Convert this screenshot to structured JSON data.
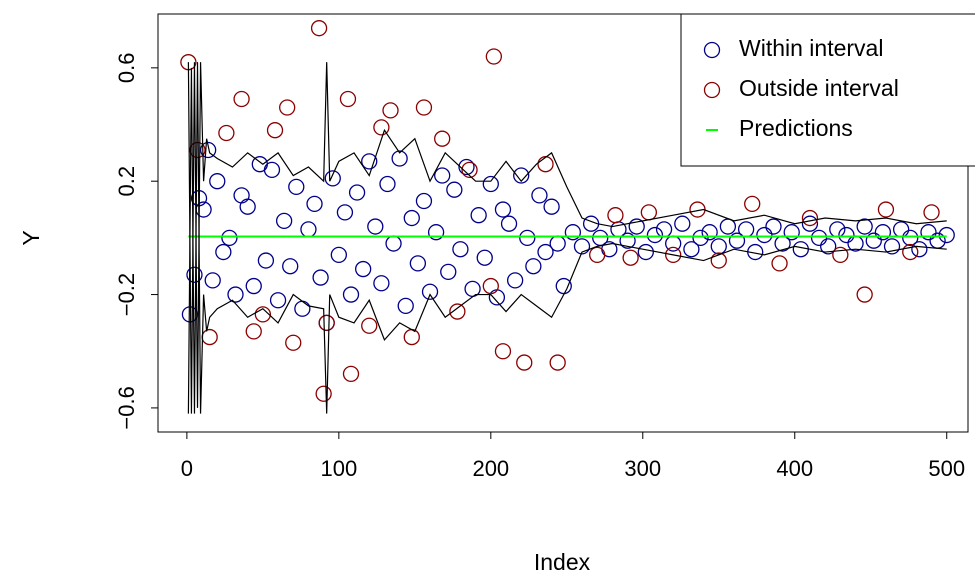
{
  "chart_data": {
    "type": "scatter",
    "xlabel": "Index",
    "ylabel": "Y",
    "xlim": [
      -19,
      514
    ],
    "ylim": [
      -0.685,
      0.79
    ],
    "xticks": [
      0,
      100,
      200,
      300,
      400,
      500
    ],
    "yticks": [
      {
        "value": -0.6,
        "label": "−0.6"
      },
      {
        "value": -0.2,
        "label": "−0.2"
      },
      0.2,
      0.6
    ],
    "legend": "topright",
    "series": [
      {
        "name": "Within interval",
        "type": "scatter",
        "color": "#00008b",
        "x": [
          2,
          5,
          8,
          11,
          14,
          17,
          20,
          24,
          28,
          32,
          36,
          40,
          44,
          48,
          52,
          56,
          60,
          64,
          68,
          72,
          76,
          80,
          84,
          88,
          92,
          96,
          100,
          104,
          108,
          112,
          116,
          120,
          124,
          128,
          132,
          136,
          140,
          144,
          148,
          152,
          156,
          160,
          164,
          168,
          172,
          176,
          180,
          184,
          188,
          192,
          196,
          200,
          204,
          208,
          212,
          216,
          220,
          224,
          228,
          232,
          236,
          240,
          244,
          248,
          254,
          260,
          266,
          272,
          278,
          284,
          290,
          296,
          302,
          308,
          314,
          320,
          326,
          332,
          338,
          344,
          350,
          356,
          362,
          368,
          374,
          380,
          386,
          392,
          398,
          404,
          410,
          416,
          422,
          428,
          434,
          440,
          446,
          452,
          458,
          464,
          470,
          476,
          482,
          488,
          494,
          500
        ],
        "values": [
          -0.27,
          -0.13,
          0.14,
          0.1,
          0.31,
          -0.15,
          0.2,
          -0.05,
          0.0,
          -0.2,
          0.15,
          0.11,
          -0.17,
          0.26,
          -0.08,
          0.24,
          -0.22,
          0.06,
          -0.1,
          0.18,
          -0.25,
          0.03,
          0.12,
          -0.14,
          -0.3,
          0.21,
          -0.06,
          0.09,
          -0.2,
          0.16,
          -0.11,
          0.27,
          0.04,
          -0.16,
          0.19,
          -0.02,
          0.28,
          -0.24,
          0.07,
          -0.09,
          0.13,
          -0.19,
          0.02,
          0.22,
          -0.12,
          0.17,
          -0.04,
          0.25,
          -0.18,
          0.08,
          -0.07,
          0.19,
          -0.21,
          0.1,
          0.05,
          -0.15,
          0.22,
          0.0,
          -0.1,
          0.15,
          -0.05,
          0.11,
          -0.02,
          -0.17,
          0.02,
          -0.03,
          0.05,
          0.0,
          -0.04,
          0.03,
          -0.01,
          0.04,
          -0.05,
          0.01,
          0.03,
          -0.02,
          0.05,
          -0.04,
          0.0,
          0.02,
          -0.03,
          0.04,
          -0.01,
          0.03,
          -0.05,
          0.01,
          0.04,
          -0.02,
          0.02,
          -0.04,
          0.05,
          0.0,
          -0.03,
          0.03,
          0.01,
          -0.02,
          0.04,
          -0.01,
          0.02,
          -0.03,
          0.03,
          0.0,
          -0.04,
          0.02,
          -0.01,
          0.01
        ]
      },
      {
        "name": "Outside interval",
        "type": "scatter",
        "color": "#8b0000",
        "x": [
          1,
          7,
          15,
          26,
          36,
          44,
          50,
          58,
          66,
          70,
          87,
          90,
          92,
          106,
          108,
          120,
          128,
          134,
          148,
          156,
          168,
          178,
          186,
          200,
          202,
          208,
          222,
          236,
          244,
          270,
          282,
          292,
          304,
          320,
          336,
          350,
          372,
          390,
          410,
          430,
          446,
          460,
          476,
          490
        ],
        "values": [
          0.62,
          0.31,
          -0.35,
          0.37,
          0.49,
          -0.33,
          -0.27,
          0.38,
          0.46,
          -0.37,
          0.74,
          -0.55,
          -0.3,
          0.49,
          -0.48,
          -0.31,
          0.39,
          0.45,
          -0.35,
          0.46,
          0.35,
          -0.26,
          0.24,
          -0.17,
          0.64,
          -0.4,
          -0.44,
          0.26,
          -0.44,
          -0.06,
          0.08,
          -0.07,
          0.09,
          -0.06,
          0.1,
          -0.08,
          0.12,
          -0.09,
          0.07,
          -0.06,
          -0.2,
          0.1,
          -0.05,
          0.09
        ]
      },
      {
        "name": "Predictions",
        "type": "line",
        "color": "#00ff00",
        "x": [
          1,
          500
        ],
        "values": [
          0.005,
          0.005
        ]
      },
      {
        "type": "line",
        "color": "#000000",
        "x": [
          1,
          3,
          5,
          7,
          9,
          11,
          13,
          15,
          20,
          30,
          40,
          50,
          60,
          70,
          80,
          90,
          92,
          94,
          100,
          110,
          120,
          130,
          140,
          150,
          160,
          170,
          180,
          190,
          200,
          210,
          220,
          230,
          240,
          250,
          260,
          270,
          280,
          300,
          320,
          340,
          360,
          380,
          400,
          420,
          440,
          460,
          480,
          500
        ],
        "values": [
          0.62,
          -0.62,
          0.62,
          -0.6,
          0.62,
          0.2,
          0.35,
          0.3,
          0.28,
          0.25,
          0.3,
          0.26,
          0.3,
          0.22,
          0.25,
          0.2,
          0.62,
          0.2,
          0.27,
          0.3,
          0.22,
          0.38,
          0.3,
          0.35,
          0.2,
          0.3,
          0.25,
          0.2,
          0.2,
          0.27,
          0.2,
          0.26,
          0.3,
          0.18,
          0.07,
          0.05,
          0.04,
          0.06,
          0.08,
          0.1,
          0.06,
          0.08,
          0.05,
          0.07,
          0.06,
          0.07,
          0.05,
          0.06
        ]
      },
      {
        "type": "line",
        "color": "#000000",
        "x": [
          1,
          3,
          5,
          7,
          9,
          11,
          13,
          15,
          20,
          30,
          40,
          50,
          60,
          70,
          80,
          90,
          92,
          94,
          100,
          110,
          120,
          130,
          140,
          150,
          160,
          170,
          180,
          190,
          200,
          210,
          220,
          230,
          240,
          250,
          260,
          270,
          280,
          300,
          320,
          340,
          360,
          380,
          400,
          420,
          440,
          460,
          480,
          500
        ],
        "values": [
          -0.62,
          0.6,
          -0.62,
          0.62,
          -0.62,
          -0.2,
          -0.33,
          -0.28,
          -0.25,
          -0.22,
          -0.28,
          -0.25,
          -0.3,
          -0.2,
          -0.24,
          -0.25,
          -0.62,
          -0.2,
          -0.28,
          -0.3,
          -0.22,
          -0.36,
          -0.3,
          -0.33,
          -0.2,
          -0.28,
          -0.24,
          -0.2,
          -0.2,
          -0.26,
          -0.2,
          -0.24,
          -0.28,
          -0.18,
          -0.05,
          -0.03,
          -0.02,
          -0.04,
          -0.06,
          -0.08,
          -0.04,
          -0.06,
          -0.03,
          -0.05,
          -0.04,
          -0.05,
          -0.03,
          -0.04
        ]
      }
    ]
  }
}
